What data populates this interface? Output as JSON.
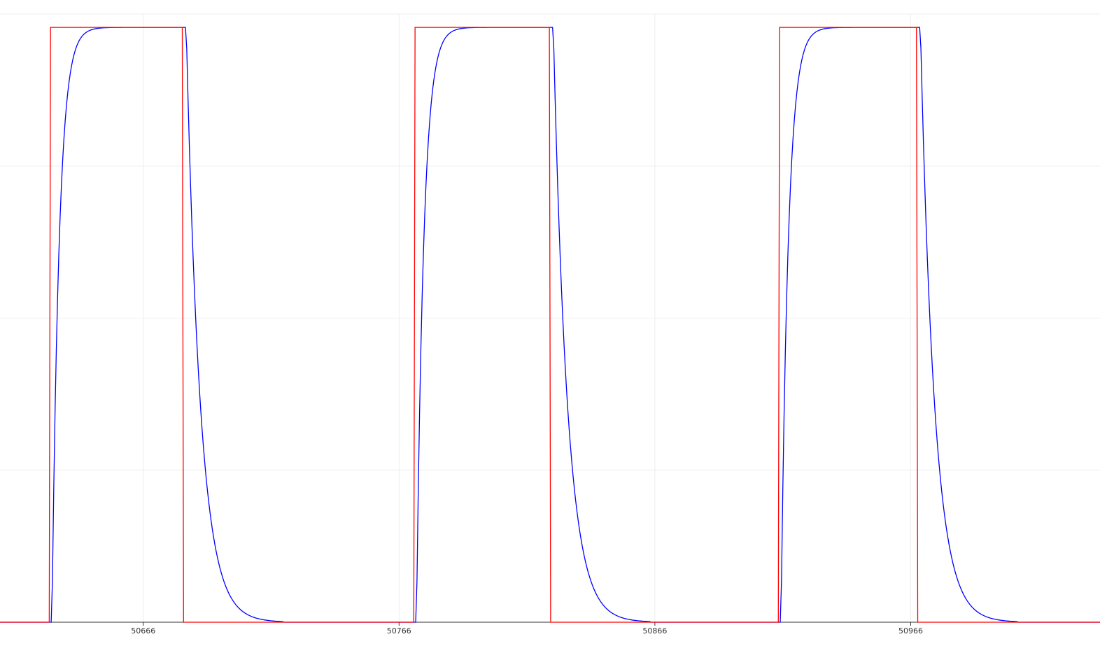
{
  "chart_data": {
    "type": "line",
    "title": "",
    "xlabel": "",
    "ylabel": "",
    "grid": true,
    "legend": "none",
    "xlim": [
      50610,
      51040
    ],
    "ylim": [
      0,
      1
    ],
    "x_ticks": [
      {
        "value": 50666,
        "label": "50666"
      },
      {
        "value": 50766,
        "label": "50766"
      },
      {
        "value": 50866,
        "label": "50866"
      },
      {
        "value": 50966,
        "label": "50966"
      }
    ],
    "y_gridlines": [
      0,
      0.25,
      0.5,
      0.75,
      1
    ],
    "pulses": [
      {
        "rise": 50629.5,
        "fall": 50681.5
      },
      {
        "rise": 50772,
        "fall": 50825
      },
      {
        "rise": 50914.5,
        "fall": 50968.5
      }
    ],
    "series": [
      {
        "color": "#ff0000",
        "shape": "square-wave",
        "low": 0,
        "high": 0.978
      },
      {
        "color": "#0000ff",
        "shape": "first-order-response",
        "low": 0,
        "high": 0.978,
        "rise_tau": 2.8,
        "fall_tau": 5.5
      }
    ]
  },
  "colors": {
    "grid": "#eeeeee",
    "axis": "#333333"
  }
}
